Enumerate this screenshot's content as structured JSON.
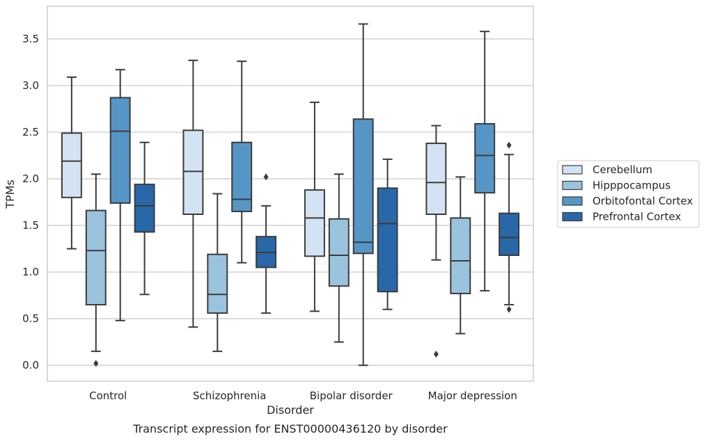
{
  "chart_data": {
    "type": "box",
    "caption": "Transcript expression for ENST00000436120 by disorder",
    "xlabel": "Disorder",
    "ylabel": "TPMs",
    "ylim": [
      -0.17,
      3.85
    ],
    "yticks": [
      "0.0",
      "0.5",
      "1.0",
      "1.5",
      "2.0",
      "2.5",
      "3.0",
      "3.5"
    ],
    "grid": "horizontal",
    "legend_position": "right",
    "categories": [
      "Control",
      "Schizophrenia",
      "Bipolar disorder",
      "Major depression"
    ],
    "series": [
      {
        "name": "Cerebellum",
        "color": "#d4e3f3",
        "boxes": [
          {
            "whislo": 1.25,
            "q1": 1.8,
            "med": 2.19,
            "q3": 2.49,
            "whishi": 3.09,
            "fliers": []
          },
          {
            "whislo": 0.41,
            "q1": 1.62,
            "med": 2.08,
            "q3": 2.52,
            "whishi": 3.27,
            "fliers": []
          },
          {
            "whislo": 0.58,
            "q1": 1.17,
            "med": 1.58,
            "q3": 1.88,
            "whishi": 2.82,
            "fliers": []
          },
          {
            "whislo": 1.13,
            "q1": 1.62,
            "med": 1.96,
            "q3": 2.38,
            "whishi": 2.57,
            "fliers": [
              0.12
            ]
          }
        ]
      },
      {
        "name": "Hipppocampus",
        "color": "#9ac3de",
        "boxes": [
          {
            "whislo": 0.15,
            "q1": 0.65,
            "med": 1.23,
            "q3": 1.66,
            "whishi": 2.05,
            "fliers": [
              0.02
            ]
          },
          {
            "whislo": 0.15,
            "q1": 0.56,
            "med": 0.76,
            "q3": 1.19,
            "whishi": 1.84,
            "fliers": []
          },
          {
            "whislo": 0.25,
            "q1": 0.85,
            "med": 1.18,
            "q3": 1.57,
            "whishi": 2.05,
            "fliers": []
          },
          {
            "whislo": 0.34,
            "q1": 0.77,
            "med": 1.12,
            "q3": 1.58,
            "whishi": 2.02,
            "fliers": []
          }
        ]
      },
      {
        "name": "Orbitofontal Cortex",
        "color": "#5596c6",
        "boxes": [
          {
            "whislo": 0.48,
            "q1": 1.74,
            "med": 2.51,
            "q3": 2.87,
            "whishi": 3.17,
            "fliers": []
          },
          {
            "whislo": 1.1,
            "q1": 1.65,
            "med": 1.78,
            "q3": 2.39,
            "whishi": 3.26,
            "fliers": []
          },
          {
            "whislo": 0.0,
            "q1": 1.2,
            "med": 1.32,
            "q3": 2.64,
            "whishi": 3.66,
            "fliers": []
          },
          {
            "whislo": 0.8,
            "q1": 1.85,
            "med": 2.25,
            "q3": 2.59,
            "whishi": 3.58,
            "fliers": []
          }
        ]
      },
      {
        "name": "Prefrontal Cortex",
        "color": "#2868a8",
        "boxes": [
          {
            "whislo": 0.76,
            "q1": 1.43,
            "med": 1.71,
            "q3": 1.94,
            "whishi": 2.39,
            "fliers": []
          },
          {
            "whislo": 0.56,
            "q1": 1.05,
            "med": 1.21,
            "q3": 1.38,
            "whishi": 1.71,
            "fliers": [
              2.02
            ]
          },
          {
            "whislo": 0.6,
            "q1": 0.79,
            "med": 1.52,
            "q3": 1.9,
            "whishi": 2.21,
            "fliers": []
          },
          {
            "whislo": 0.65,
            "q1": 1.18,
            "med": 1.37,
            "q3": 1.63,
            "whishi": 2.26,
            "fliers": [
              0.6,
              2.36
            ]
          }
        ]
      }
    ]
  }
}
